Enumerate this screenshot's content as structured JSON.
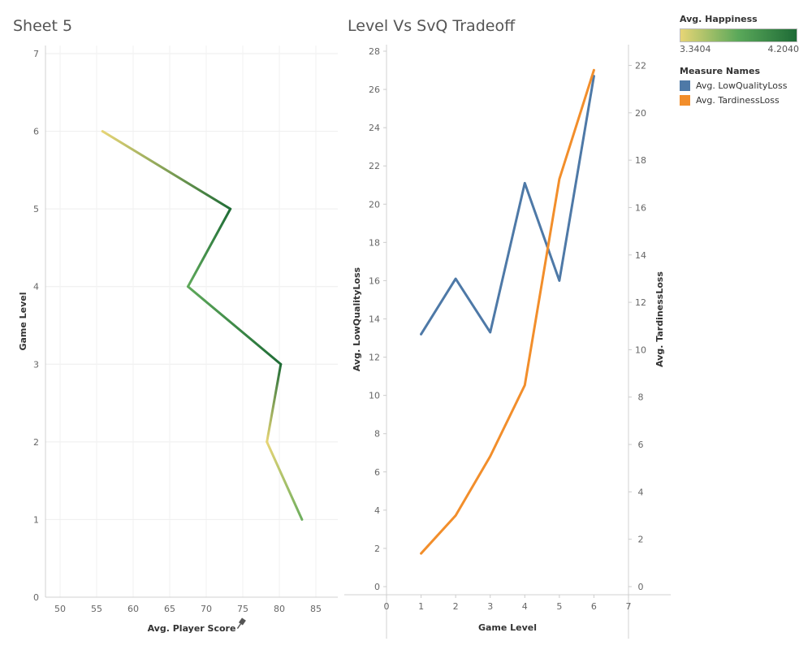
{
  "sheets": {
    "left_title": "Sheet 5",
    "right_title": "Level Vs SvQ Tradeoff"
  },
  "legend": {
    "color_title": "Avg. Happiness",
    "color_min": "3.3404",
    "color_max": "4.2040",
    "measure_title": "Measure Names",
    "items": [
      {
        "label": "Avg. LowQualityLoss",
        "color": "#4e79a7"
      },
      {
        "label": "Avg. TardinessLoss",
        "color": "#f28e2b"
      }
    ]
  },
  "icons": {
    "pin": "pin-icon"
  },
  "chart_data": [
    {
      "type": "line",
      "title": "Sheet 5",
      "xlabel": "Avg. Player Score",
      "ylabel": "Game Level",
      "xlim": [
        48,
        88
      ],
      "ylim": [
        0,
        7
      ],
      "xticks": [
        50,
        55,
        60,
        65,
        70,
        75,
        80,
        85
      ],
      "yticks": [
        0,
        1,
        2,
        3,
        4,
        5,
        6,
        7
      ],
      "grid": true,
      "color_scale": {
        "low": "#e7d576",
        "high": "#1e6b36",
        "min": 3.3404,
        "max": 4.204
      },
      "points": [
        {
          "level": 1,
          "score": 83.1,
          "happiness": 3.75
        },
        {
          "level": 2,
          "score": 78.3,
          "happiness": 3.34
        },
        {
          "level": 3,
          "score": 80.2,
          "happiness": 4.2
        },
        {
          "level": 4,
          "score": 67.5,
          "happiness": 3.8
        },
        {
          "level": 5,
          "score": 73.3,
          "happiness": 4.2
        },
        {
          "level": 6,
          "score": 55.8,
          "happiness": 3.34
        }
      ]
    },
    {
      "type": "line",
      "title": "Level Vs SvQ Tradeoff",
      "xlabel": "Game Level",
      "ylabel": "Avg. LowQualityLoss",
      "y2label": "Avg. TardinessLoss",
      "xlim": [
        0,
        7
      ],
      "ylim": [
        0,
        28
      ],
      "y2lim": [
        0,
        22.6
      ],
      "xticks": [
        0,
        1,
        2,
        3,
        4,
        5,
        6,
        7
      ],
      "yticks": [
        0,
        2,
        4,
        6,
        8,
        10,
        12,
        14,
        16,
        18,
        20,
        22,
        24,
        26,
        28
      ],
      "y2ticks": [
        0,
        2,
        4,
        6,
        8,
        10,
        12,
        14,
        16,
        18,
        20,
        22
      ],
      "x": [
        1,
        2,
        3,
        4,
        5,
        6
      ],
      "series": [
        {
          "name": "Avg. LowQualityLoss",
          "axis": "left",
          "color": "#4e79a7",
          "values": [
            13.2,
            16.1,
            13.3,
            21.1,
            16.0,
            26.7
          ]
        },
        {
          "name": "Avg. TardinessLoss",
          "axis": "right",
          "color": "#f28e2b",
          "values": [
            1.4,
            3.0,
            5.5,
            8.5,
            17.2,
            21.8
          ]
        }
      ]
    }
  ]
}
